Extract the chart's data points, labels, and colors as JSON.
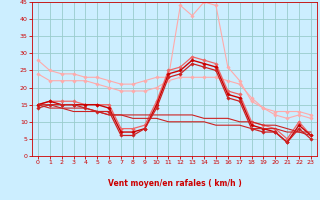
{
  "background_color": "#cceeff",
  "grid_color": "#99cccc",
  "xlabel": "Vent moyen/en rafales ( km/h )",
  "xlabel_color": "#cc0000",
  "tick_color": "#cc0000",
  "xlim": [
    -0.5,
    23.5
  ],
  "ylim": [
    0,
    45
  ],
  "yticks": [
    0,
    5,
    10,
    15,
    20,
    25,
    30,
    35,
    40,
    45
  ],
  "xticks": [
    0,
    1,
    2,
    3,
    4,
    5,
    6,
    7,
    8,
    9,
    10,
    11,
    12,
    13,
    14,
    15,
    16,
    17,
    18,
    19,
    20,
    21,
    22,
    23
  ],
  "series": [
    {
      "color": "#ffaaaa",
      "linewidth": 0.8,
      "marker": "D",
      "markersize": 1.8,
      "y": [
        28,
        25,
        24,
        24,
        23,
        23,
        22,
        21,
        21,
        22,
        23,
        23,
        44,
        41,
        45,
        44,
        26,
        22,
        16,
        14,
        13,
        13,
        13,
        12
      ]
    },
    {
      "color": "#ffaaaa",
      "linewidth": 0.8,
      "marker": "D",
      "markersize": 1.8,
      "y": [
        24,
        22,
        22,
        22,
        22,
        21,
        20,
        19,
        19,
        19,
        20,
        22,
        23,
        23,
        23,
        23,
        22,
        21,
        17,
        14,
        12,
        11,
        12,
        11
      ]
    },
    {
      "color": "#ee6666",
      "linewidth": 0.9,
      "marker": "D",
      "markersize": 1.8,
      "y": [
        15,
        16,
        16,
        16,
        15,
        15,
        15,
        8,
        8,
        9,
        16,
        25,
        26,
        29,
        28,
        27,
        19,
        18,
        10,
        9,
        8,
        5,
        10,
        6
      ]
    },
    {
      "color": "#cc0000",
      "linewidth": 1.0,
      "marker": "D",
      "markersize": 1.8,
      "y": [
        15,
        16,
        15,
        15,
        15,
        15,
        14,
        7,
        7,
        8,
        15,
        24,
        25,
        28,
        27,
        26,
        18,
        17,
        9,
        8,
        7,
        4,
        9,
        6
      ]
    },
    {
      "color": "#cc2222",
      "linewidth": 0.9,
      "marker": "D",
      "markersize": 1.8,
      "y": [
        14,
        15,
        15,
        15,
        14,
        13,
        13,
        6,
        6,
        8,
        14,
        23,
        24,
        27,
        26,
        25,
        17,
        16,
        8,
        7,
        7,
        4,
        8,
        5
      ]
    },
    {
      "color": "#cc2222",
      "linewidth": 0.8,
      "marker": null,
      "y": [
        15,
        15,
        14,
        14,
        14,
        13,
        12,
        12,
        12,
        12,
        12,
        12,
        12,
        12,
        11,
        11,
        11,
        10,
        10,
        9,
        9,
        8,
        7,
        7
      ]
    },
    {
      "color": "#cc2222",
      "linewidth": 0.8,
      "marker": null,
      "y": [
        15,
        14,
        14,
        13,
        13,
        13,
        12,
        12,
        11,
        11,
        11,
        10,
        10,
        10,
        10,
        9,
        9,
        9,
        8,
        8,
        8,
        7,
        7,
        6
      ]
    }
  ],
  "arrows": [
    "→",
    "↘",
    "↘",
    "↓",
    "↓",
    "↓",
    "→",
    "→",
    "→",
    "→",
    "↘",
    "↘",
    "↘",
    "↘",
    "↓",
    "↓",
    "→",
    "→",
    "→",
    "→",
    "→",
    "→",
    "→",
    "→"
  ]
}
